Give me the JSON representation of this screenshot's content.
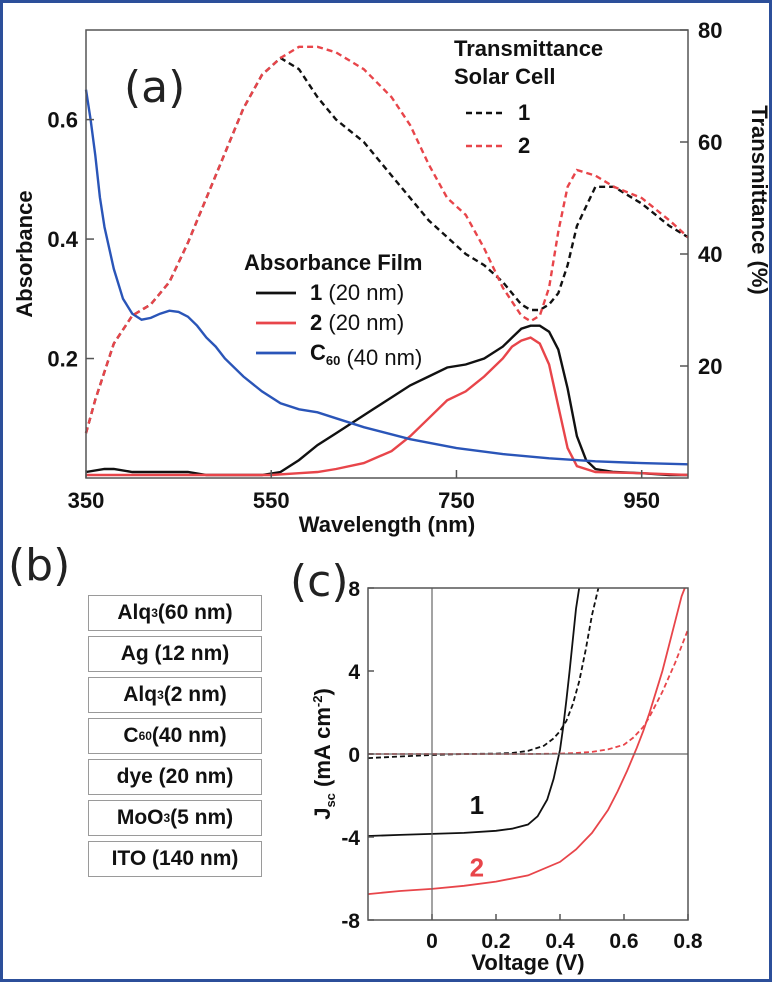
{
  "panel_labels": {
    "a": "(a)",
    "b": "(b)",
    "c": "(c)"
  },
  "layer_stack": [
    "Alq3 (60 nm)",
    "Ag (12 nm)",
    "Alq3 (2 nm)",
    "C60 (40 nm)",
    "dye (20 nm)",
    "MoO3 (5 nm)",
    "ITO (140 nm)"
  ],
  "colors": {
    "black": "#111111",
    "red": "#e8454a",
    "blue": "#2a55b8",
    "frame": "#2c4f9a"
  },
  "chart_data": [
    {
      "type": "line",
      "panel": "a",
      "xlabel": "Wavelength (nm)",
      "ylabel": "Absorbance",
      "y2label": "Transmittance (%)",
      "xlim": [
        350,
        1000
      ],
      "ylim": [
        0,
        0.75
      ],
      "y2lim": [
        0,
        80
      ],
      "xticks": [
        350,
        550,
        750,
        950
      ],
      "yticks": [
        0.2,
        0.4,
        0.6
      ],
      "y2ticks": [
        20,
        40,
        60,
        80
      ],
      "legend_transmittance": {
        "title1": "Transmittance",
        "title2": "Solar Cell",
        "items": [
          "1",
          "2"
        ]
      },
      "legend_absorbance": {
        "title": "Absorbance Film",
        "items": [
          {
            "bold": "1",
            "rest": " (20 nm)"
          },
          {
            "bold": "2",
            "rest": " (20 nm)"
          },
          {
            "bold": "C60",
            "rest": " (40 nm)"
          }
        ]
      },
      "series": [
        {
          "name": "1",
          "group": "absorbance",
          "style": "solid",
          "color": "#111111",
          "x": [
            350,
            370,
            380,
            400,
            420,
            440,
            460,
            480,
            500,
            520,
            540,
            560,
            580,
            600,
            620,
            640,
            660,
            680,
            700,
            720,
            740,
            760,
            780,
            800,
            810,
            820,
            830,
            840,
            850,
            860,
            870,
            880,
            890,
            900,
            920,
            950,
            980,
            1000
          ],
          "y": [
            0.01,
            0.015,
            0.015,
            0.01,
            0.01,
            0.01,
            0.01,
            0.005,
            0.005,
            0.005,
            0.005,
            0.01,
            0.03,
            0.055,
            0.075,
            0.095,
            0.115,
            0.135,
            0.155,
            0.17,
            0.185,
            0.19,
            0.2,
            0.22,
            0.235,
            0.25,
            0.255,
            0.255,
            0.245,
            0.215,
            0.15,
            0.07,
            0.03,
            0.015,
            0.01,
            0.008,
            0.005,
            0.005
          ]
        },
        {
          "name": "2",
          "group": "absorbance",
          "style": "solid",
          "color": "#e8454a",
          "x": [
            350,
            400,
            450,
            500,
            550,
            580,
            600,
            620,
            650,
            680,
            700,
            720,
            740,
            760,
            780,
            800,
            810,
            820,
            830,
            840,
            850,
            860,
            870,
            880,
            900,
            950,
            1000
          ],
          "y": [
            0.005,
            0.005,
            0.005,
            0.005,
            0.005,
            0.008,
            0.01,
            0.015,
            0.025,
            0.045,
            0.07,
            0.1,
            0.13,
            0.145,
            0.17,
            0.2,
            0.22,
            0.23,
            0.235,
            0.225,
            0.19,
            0.12,
            0.05,
            0.02,
            0.01,
            0.008,
            0.005
          ]
        },
        {
          "name": "C60",
          "group": "absorbance",
          "style": "solid",
          "color": "#2a55b8",
          "x": [
            350,
            355,
            360,
            365,
            370,
            380,
            390,
            400,
            410,
            420,
            430,
            440,
            450,
            460,
            470,
            480,
            490,
            500,
            520,
            540,
            560,
            580,
            600,
            620,
            650,
            700,
            750,
            800,
            850,
            900,
            950,
            1000
          ],
          "y": [
            0.65,
            0.6,
            0.54,
            0.47,
            0.42,
            0.35,
            0.3,
            0.275,
            0.265,
            0.268,
            0.275,
            0.28,
            0.278,
            0.27,
            0.255,
            0.235,
            0.22,
            0.2,
            0.17,
            0.145,
            0.125,
            0.115,
            0.11,
            0.1,
            0.085,
            0.065,
            0.05,
            0.04,
            0.033,
            0.028,
            0.025,
            0.023
          ]
        },
        {
          "name": "1",
          "group": "transmittance",
          "style": "dashed",
          "color": "#111111",
          "x": [
            350,
            360,
            380,
            400,
            420,
            440,
            460,
            480,
            500,
            520,
            540,
            560,
            580,
            600,
            620,
            650,
            680,
            700,
            720,
            740,
            760,
            780,
            800,
            820,
            830,
            840,
            850,
            860,
            870,
            880,
            900,
            920,
            950,
            980,
            1000
          ],
          "y": [
            8,
            14,
            24,
            29,
            31,
            35,
            42,
            50,
            58,
            66,
            72,
            75,
            73,
            68,
            64,
            60,
            54,
            50,
            46,
            43,
            40,
            38,
            35,
            31,
            30,
            30,
            31,
            33,
            38,
            45,
            52,
            52,
            49,
            45,
            43
          ]
        },
        {
          "name": "2",
          "group": "transmittance",
          "style": "dashed",
          "color": "#e8454a",
          "x": [
            350,
            360,
            380,
            400,
            420,
            440,
            460,
            480,
            500,
            520,
            540,
            560,
            580,
            600,
            620,
            650,
            680,
            700,
            720,
            740,
            760,
            780,
            800,
            820,
            830,
            840,
            850,
            860,
            870,
            880,
            900,
            920,
            950,
            980,
            1000
          ],
          "y": [
            8,
            14,
            24,
            29,
            31,
            35,
            42,
            50,
            58,
            66,
            72,
            75,
            77,
            77,
            76,
            73,
            68,
            63,
            56,
            50,
            47,
            41,
            34,
            29,
            28,
            29,
            34,
            44,
            52,
            55,
            54,
            52,
            50,
            46,
            43
          ]
        }
      ]
    },
    {
      "type": "line",
      "panel": "c",
      "xlabel": "Voltage (V)",
      "ylabel": "Jsc (mA cm-2)",
      "xlim": [
        -0.2,
        0.8
      ],
      "ylim": [
        -8,
        8
      ],
      "xticks": [
        0,
        0.2,
        0.4,
        0.6,
        0.8
      ],
      "yticks": [
        -8,
        -4,
        0,
        4,
        8
      ],
      "annotations": [
        {
          "text": "1",
          "color": "#111111"
        },
        {
          "text": "2",
          "color": "#e8454a"
        }
      ],
      "series": [
        {
          "name": "1",
          "style": "solid",
          "color": "#111111",
          "x": [
            -0.2,
            -0.1,
            0,
            0.1,
            0.2,
            0.25,
            0.3,
            0.33,
            0.36,
            0.38,
            0.4,
            0.41,
            0.42,
            0.43,
            0.44,
            0.45,
            0.46
          ],
          "y": [
            -3.95,
            -3.9,
            -3.85,
            -3.8,
            -3.7,
            -3.6,
            -3.4,
            -3.0,
            -2.2,
            -1.2,
            0.2,
            1.3,
            2.6,
            4.0,
            5.5,
            7.0,
            8.0
          ]
        },
        {
          "name": "1",
          "style": "dashed",
          "color": "#111111",
          "x": [
            -0.2,
            -0.1,
            0,
            0.1,
            0.2,
            0.25,
            0.3,
            0.35,
            0.38,
            0.4,
            0.42,
            0.44,
            0.46,
            0.48,
            0.5,
            0.52
          ],
          "y": [
            -0.2,
            -0.12,
            -0.05,
            0,
            0.02,
            0.05,
            0.15,
            0.4,
            0.75,
            1.1,
            1.6,
            2.4,
            3.5,
            5.0,
            6.7,
            8.0
          ]
        },
        {
          "name": "2",
          "style": "solid",
          "color": "#e8454a",
          "x": [
            -0.2,
            -0.1,
            0,
            0.1,
            0.2,
            0.3,
            0.4,
            0.45,
            0.5,
            0.55,
            0.58,
            0.61,
            0.64,
            0.66,
            0.68,
            0.7,
            0.72,
            0.74,
            0.76,
            0.78,
            0.79
          ],
          "y": [
            -6.75,
            -6.6,
            -6.5,
            -6.35,
            -6.15,
            -5.85,
            -5.2,
            -4.6,
            -3.8,
            -2.7,
            -1.8,
            -0.8,
            0.3,
            1.1,
            2.0,
            3.0,
            4.0,
            5.2,
            6.4,
            7.6,
            8.0
          ]
        },
        {
          "name": "2",
          "style": "dashed",
          "color": "#e8454a",
          "x": [
            -0.2,
            0,
            0.2,
            0.3,
            0.4,
            0.45,
            0.5,
            0.55,
            0.6,
            0.63,
            0.66,
            0.68,
            0.7,
            0.72,
            0.74,
            0.76,
            0.78,
            0.8
          ],
          "y": [
            0,
            0,
            0,
            0,
            0.02,
            0.05,
            0.1,
            0.22,
            0.45,
            0.8,
            1.3,
            1.8,
            2.4,
            3.0,
            3.7,
            4.4,
            5.2,
            6.0
          ]
        }
      ]
    }
  ]
}
